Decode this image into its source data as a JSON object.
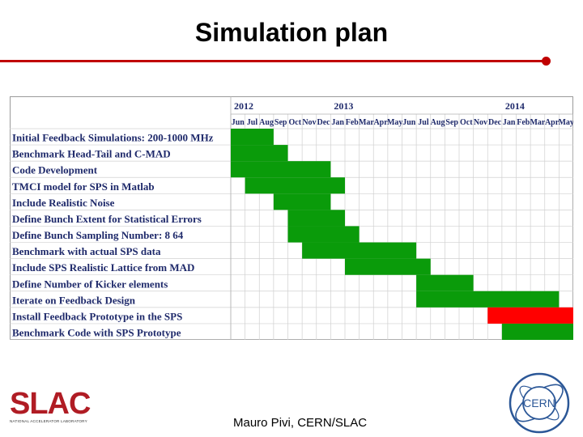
{
  "slide": {
    "title": "Simulation plan",
    "footer": "Mauro Pivi, CERN/SLAC"
  },
  "logos": {
    "left": {
      "icon": "slac-logo",
      "text": "SLAC",
      "subtext": "NATIONAL ACCELERATOR LABORATORY",
      "color": "#b01c24"
    },
    "right": {
      "icon": "cern-logo",
      "text": "CERN",
      "color": "#2b5797"
    }
  },
  "colors": {
    "bar_default": "#0a9b0a",
    "bar_highlight": "#ff0000",
    "header_text": "#1f2a6b",
    "title_rule": "#c00000"
  },
  "chart_data": {
    "type": "gantt",
    "years": [
      {
        "label": "2012",
        "start": 0
      },
      {
        "label": "2013",
        "start": 7
      },
      {
        "label": "2014",
        "start": 19
      }
    ],
    "months": [
      "Jun",
      "Jul",
      "Aug",
      "Sep",
      "Oct",
      "Nov",
      "Dec",
      "Jan",
      "Feb",
      "Mar",
      "Apr",
      "May",
      "Jun",
      "Jul",
      "Aug",
      "Sep",
      "Oct",
      "Nov",
      "Dec",
      "Jan",
      "Feb",
      "Mar",
      "Apr",
      "May"
    ],
    "tasks": [
      {
        "label": "Initial Feedback Simulations: 200-1000 MHz",
        "start": 0,
        "end": 3,
        "color": "#0a9b0a"
      },
      {
        "label": "Benchmark Head-Tail and C-MAD",
        "start": 0,
        "end": 4,
        "color": "#0a9b0a"
      },
      {
        "label": "Code Development",
        "start": 0,
        "end": 7,
        "color": "#0a9b0a"
      },
      {
        "label": "TMCI model for SPS in Matlab",
        "start": 1,
        "end": 8,
        "color": "#0a9b0a"
      },
      {
        "label": "Include Realistic Noise",
        "start": 3,
        "end": 7,
        "color": "#0a9b0a"
      },
      {
        "label": "Define Bunch Extent for Statistical Errors",
        "start": 4,
        "end": 8,
        "color": "#0a9b0a"
      },
      {
        "label": "Define Bunch Sampling Number: 8 64",
        "start": 4,
        "end": 9,
        "color": "#0a9b0a"
      },
      {
        "label": "Benchmark with actual SPS data",
        "start": 5,
        "end": 13,
        "color": "#0a9b0a"
      },
      {
        "label": "Include SPS Realistic Lattice from MAD",
        "start": 8,
        "end": 14,
        "color": "#0a9b0a"
      },
      {
        "label": "Define Number of Kicker elements",
        "start": 13,
        "end": 17,
        "color": "#0a9b0a"
      },
      {
        "label": "Iterate on Feedback Design",
        "start": 13,
        "end": 23,
        "color": "#0a9b0a"
      },
      {
        "label": "Install Feedback Prototype in the SPS",
        "start": 18,
        "end": 24,
        "color": "#ff0000"
      },
      {
        "label": "Benchmark Code with SPS Prototype",
        "start": 19,
        "end": 24,
        "color": "#0a9b0a"
      }
    ]
  }
}
